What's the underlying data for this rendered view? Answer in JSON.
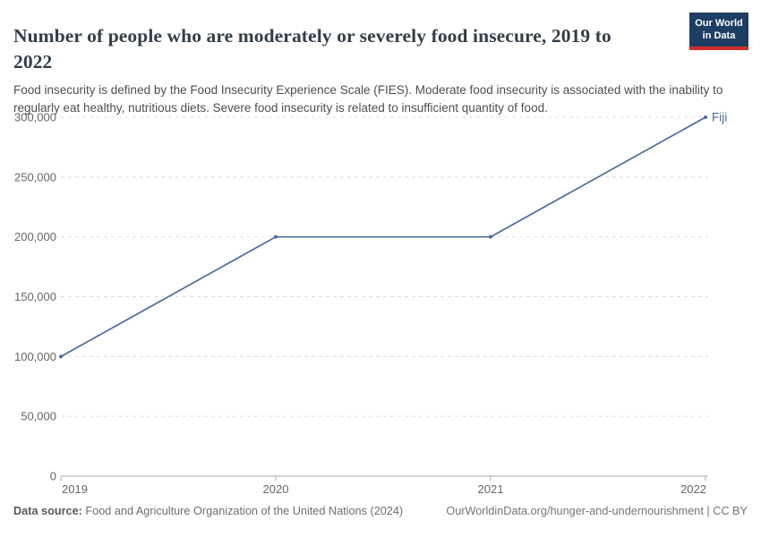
{
  "header": {
    "title": "Number of people who are moderately or severely food insecure, 2019 to 2022",
    "subtitle": "Food insecurity is defined by the Food Insecurity Experience Scale (FIES). Moderate food insecurity is associated with the inability to regularly eat healthy, nutritious diets. Severe food insecurity is related to insufficient quantity of food.",
    "logo": {
      "line1": "Our World",
      "line2": "in Data"
    }
  },
  "chart_data": {
    "type": "line",
    "title": "Number of people who are moderately or severely food insecure, 2019 to 2022",
    "x": [
      2019,
      2020,
      2021,
      2022
    ],
    "xtick_labels": [
      "2019",
      "2020",
      "2021",
      "2022"
    ],
    "series": [
      {
        "name": "Fiji",
        "values": [
          100000,
          200000,
          200000,
          300000
        ],
        "color": "#4c6a9c"
      }
    ],
    "ylim": [
      0,
      300000
    ],
    "yticks": [
      {
        "value": 0,
        "label": "0"
      },
      {
        "value": 50000,
        "label": "50,000"
      },
      {
        "value": 100000,
        "label": "100,000"
      },
      {
        "value": 150000,
        "label": "150,000"
      },
      {
        "value": 200000,
        "label": "200,000"
      },
      {
        "value": 250000,
        "label": "250,000"
      },
      {
        "value": 300000,
        "label": "300,000"
      }
    ],
    "grid": true,
    "legend": "end-of-line-label"
  },
  "footer": {
    "datasource_label": "Data source:",
    "datasource_text": " Food and Agriculture Organization of the United Nations (2024)",
    "link_text": "OurWorldinData.org/hunger-and-undernourishment | CC BY"
  },
  "colors": {
    "line": "#4c6a9c",
    "gridline": "#dcdcdc",
    "axis": "#a8a8a8",
    "tick_text": "#666666",
    "title_text": "#333e48",
    "logo_bg": "#1d3d63",
    "logo_stripe": "#cf2f2a"
  }
}
